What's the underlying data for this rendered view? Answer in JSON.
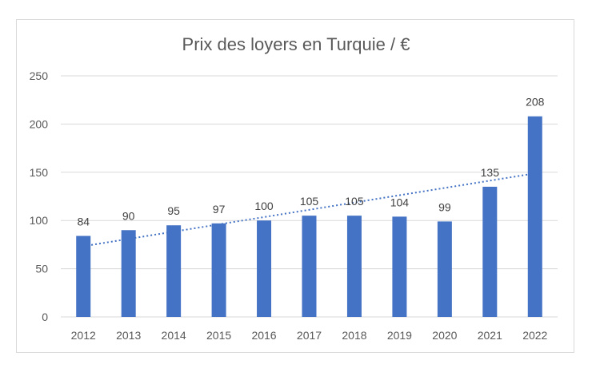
{
  "chart_data": {
    "type": "bar",
    "title": "Prix des loyers en Turquie / €",
    "categories": [
      "2012",
      "2013",
      "2014",
      "2015",
      "2016",
      "2017",
      "2018",
      "2019",
      "2020",
      "2021",
      "2022"
    ],
    "values": [
      84,
      90,
      95,
      97,
      100,
      105,
      105,
      104,
      99,
      135,
      208
    ],
    "data_labels": [
      "84",
      "90",
      "95",
      "97",
      "100",
      "105",
      "105",
      "104",
      "99",
      "135",
      "208"
    ],
    "y_ticks": [
      "0",
      "50",
      "100",
      "150",
      "200",
      "250"
    ],
    "ylim": [
      0,
      250
    ],
    "grid": true,
    "legend": "none",
    "trendline": "linear",
    "colors": {
      "bar": "#4472c4",
      "trend": "#4472c4",
      "grid": "#d9d9d9"
    }
  }
}
